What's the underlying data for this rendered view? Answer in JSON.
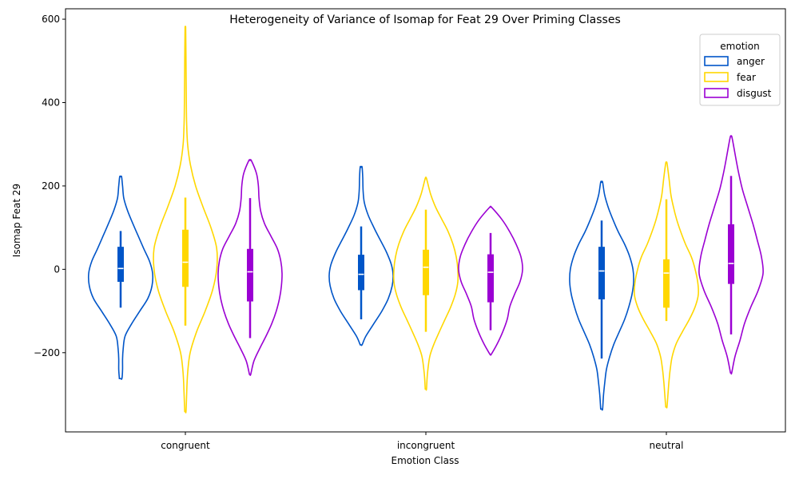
{
  "chart_data": {
    "type": "violin",
    "title": "Heterogeneity of Variance of Isomap for Feat 29 Over Priming Classes",
    "xlabel": "Emotion Class",
    "ylabel": "Isomap Feat 29",
    "categories": [
      "congruent",
      "incongruent",
      "neutral"
    ],
    "ylim": [
      -390,
      625
    ],
    "yticks": [
      -200,
      0,
      200,
      400,
      600
    ],
    "ytick_labels": [
      "−200",
      "0",
      "200",
      "400",
      "600"
    ],
    "grid": false,
    "legend": {
      "title": "emotion",
      "placement": "top-right"
    },
    "series": [
      {
        "name": "anger",
        "color": "#0055c8",
        "groups": [
          {
            "min": -262,
            "max": 222,
            "whisker_low": -92,
            "whisker_high": 92,
            "q1": -30,
            "q3": 54,
            "median": 2,
            "profile": [
              [
                -262,
                0.04
              ],
              [
                -240,
                0.06
              ],
              [
                -215,
                0.06
              ],
              [
                -190,
                0.08
              ],
              [
                -160,
                0.14
              ],
              [
                -130,
                0.35
              ],
              [
                -100,
                0.6
              ],
              [
                -70,
                0.85
              ],
              [
                -40,
                0.98
              ],
              [
                -10,
                1.0
              ],
              [
                20,
                0.9
              ],
              [
                50,
                0.72
              ],
              [
                80,
                0.55
              ],
              [
                110,
                0.38
              ],
              [
                140,
                0.22
              ],
              [
                170,
                0.1
              ],
              [
                200,
                0.06
              ],
              [
                222,
                0.03
              ]
            ]
          },
          {
            "min": -181,
            "max": 245,
            "whisker_low": -120,
            "whisker_high": 103,
            "q1": -50,
            "q3": 35,
            "median": -12,
            "profile": [
              [
                -181,
                0.03
              ],
              [
                -160,
                0.15
              ],
              [
                -130,
                0.4
              ],
              [
                -100,
                0.65
              ],
              [
                -70,
                0.85
              ],
              [
                -40,
                0.97
              ],
              [
                -15,
                1.0
              ],
              [
                10,
                0.95
              ],
              [
                40,
                0.8
              ],
              [
                70,
                0.6
              ],
              [
                100,
                0.4
              ],
              [
                130,
                0.22
              ],
              [
                160,
                0.1
              ],
              [
                190,
                0.06
              ],
              [
                220,
                0.05
              ],
              [
                245,
                0.03
              ]
            ]
          },
          {
            "min": -335,
            "max": 209,
            "whisker_low": -214,
            "whisker_high": 117,
            "q1": -72,
            "q3": 54,
            "median": -4,
            "profile": [
              [
                -335,
                0.03
              ],
              [
                -300,
                0.06
              ],
              [
                -270,
                0.1
              ],
              [
                -240,
                0.15
              ],
              [
                -210,
                0.25
              ],
              [
                -180,
                0.38
              ],
              [
                -150,
                0.55
              ],
              [
                -120,
                0.72
              ],
              [
                -90,
                0.85
              ],
              [
                -60,
                0.95
              ],
              [
                -30,
                1.0
              ],
              [
                0,
                0.98
              ],
              [
                30,
                0.88
              ],
              [
                60,
                0.72
              ],
              [
                90,
                0.52
              ],
              [
                120,
                0.35
              ],
              [
                150,
                0.2
              ],
              [
                180,
                0.09
              ],
              [
                209,
                0.03
              ]
            ]
          }
        ]
      },
      {
        "name": "fear",
        "color": "#ffd700",
        "groups": [
          {
            "min": -341,
            "max": 577,
            "whisker_low": -135,
            "whisker_high": 172,
            "q1": -42,
            "q3": 95,
            "median": 17,
            "profile": [
              [
                -341,
                0.02
              ],
              [
                -300,
                0.04
              ],
              [
                -250,
                0.07
              ],
              [
                -200,
                0.15
              ],
              [
                -150,
                0.35
              ],
              [
                -100,
                0.62
              ],
              [
                -50,
                0.85
              ],
              [
                0,
                0.98
              ],
              [
                50,
                0.98
              ],
              [
                100,
                0.8
              ],
              [
                150,
                0.55
              ],
              [
                200,
                0.32
              ],
              [
                250,
                0.16
              ],
              [
                300,
                0.07
              ],
              [
                350,
                0.04
              ],
              [
                400,
                0.03
              ],
              [
                450,
                0.025
              ],
              [
                500,
                0.02
              ],
              [
                577,
                0.01
              ]
            ]
          },
          {
            "min": -287,
            "max": 218,
            "whisker_low": -150,
            "whisker_high": 143,
            "q1": -62,
            "q3": 47,
            "median": 5,
            "profile": [
              [
                -287,
                0.02
              ],
              [
                -250,
                0.05
              ],
              [
                -210,
                0.12
              ],
              [
                -180,
                0.25
              ],
              [
                -150,
                0.42
              ],
              [
                -120,
                0.6
              ],
              [
                -90,
                0.78
              ],
              [
                -60,
                0.92
              ],
              [
                -30,
                1.0
              ],
              [
                0,
                1.0
              ],
              [
                30,
                0.95
              ],
              [
                60,
                0.85
              ],
              [
                90,
                0.7
              ],
              [
                120,
                0.5
              ],
              [
                150,
                0.3
              ],
              [
                180,
                0.15
              ],
              [
                218,
                0.02
              ]
            ]
          },
          {
            "min": -330,
            "max": 255,
            "whisker_low": -124,
            "whisker_high": 168,
            "q1": -92,
            "q3": 24,
            "median": -9,
            "profile": [
              [
                -330,
                0.02
              ],
              [
                -300,
                0.05
              ],
              [
                -270,
                0.08
              ],
              [
                -240,
                0.12
              ],
              [
                -210,
                0.18
              ],
              [
                -180,
                0.3
              ],
              [
                -150,
                0.5
              ],
              [
                -120,
                0.72
              ],
              [
                -90,
                0.9
              ],
              [
                -60,
                1.0
              ],
              [
                -30,
                0.98
              ],
              [
                0,
                0.9
              ],
              [
                30,
                0.78
              ],
              [
                60,
                0.6
              ],
              [
                90,
                0.45
              ],
              [
                120,
                0.32
              ],
              [
                150,
                0.22
              ],
              [
                180,
                0.14
              ],
              [
                220,
                0.08
              ],
              [
                255,
                0.02
              ]
            ]
          }
        ]
      },
      {
        "name": "disgust",
        "color": "#9b00d3",
        "groups": [
          {
            "min": -252,
            "max": 261,
            "whisker_low": -165,
            "whisker_high": 171,
            "q1": -77,
            "q3": 49,
            "median": -6,
            "profile": [
              [
                -252,
                0.02
              ],
              [
                -220,
                0.12
              ],
              [
                -190,
                0.3
              ],
              [
                -160,
                0.5
              ],
              [
                -130,
                0.68
              ],
              [
                -100,
                0.82
              ],
              [
                -70,
                0.92
              ],
              [
                -40,
                0.98
              ],
              [
                -10,
                1.0
              ],
              [
                20,
                0.96
              ],
              [
                50,
                0.85
              ],
              [
                80,
                0.65
              ],
              [
                110,
                0.45
              ],
              [
                140,
                0.33
              ],
              [
                170,
                0.28
              ],
              [
                200,
                0.26
              ],
              [
                230,
                0.2
              ],
              [
                261,
                0.04
              ]
            ]
          },
          {
            "min": -204,
            "max": 149,
            "whisker_low": -146,
            "whisker_high": 87,
            "q1": -79,
            "q3": 36,
            "median": -7,
            "profile": [
              [
                -204,
                0.02
              ],
              [
                -180,
                0.2
              ],
              [
                -150,
                0.38
              ],
              [
                -120,
                0.52
              ],
              [
                -90,
                0.6
              ],
              [
                -60,
                0.75
              ],
              [
                -30,
                0.92
              ],
              [
                0,
                1.0
              ],
              [
                30,
                0.95
              ],
              [
                60,
                0.8
              ],
              [
                90,
                0.6
              ],
              [
                120,
                0.35
              ],
              [
                149,
                0.03
              ]
            ]
          },
          {
            "min": -248,
            "max": 319,
            "whisker_low": -156,
            "whisker_high": 224,
            "q1": -35,
            "q3": 108,
            "median": 14,
            "profile": [
              [
                -248,
                0.02
              ],
              [
                -210,
                0.12
              ],
              [
                -170,
                0.28
              ],
              [
                -130,
                0.42
              ],
              [
                -90,
                0.62
              ],
              [
                -50,
                0.85
              ],
              [
                -10,
                1.0
              ],
              [
                30,
                0.95
              ],
              [
                70,
                0.82
              ],
              [
                110,
                0.68
              ],
              [
                150,
                0.52
              ],
              [
                190,
                0.36
              ],
              [
                230,
                0.24
              ],
              [
                270,
                0.14
              ],
              [
                300,
                0.07
              ],
              [
                319,
                0.02
              ]
            ]
          }
        ]
      }
    ]
  }
}
